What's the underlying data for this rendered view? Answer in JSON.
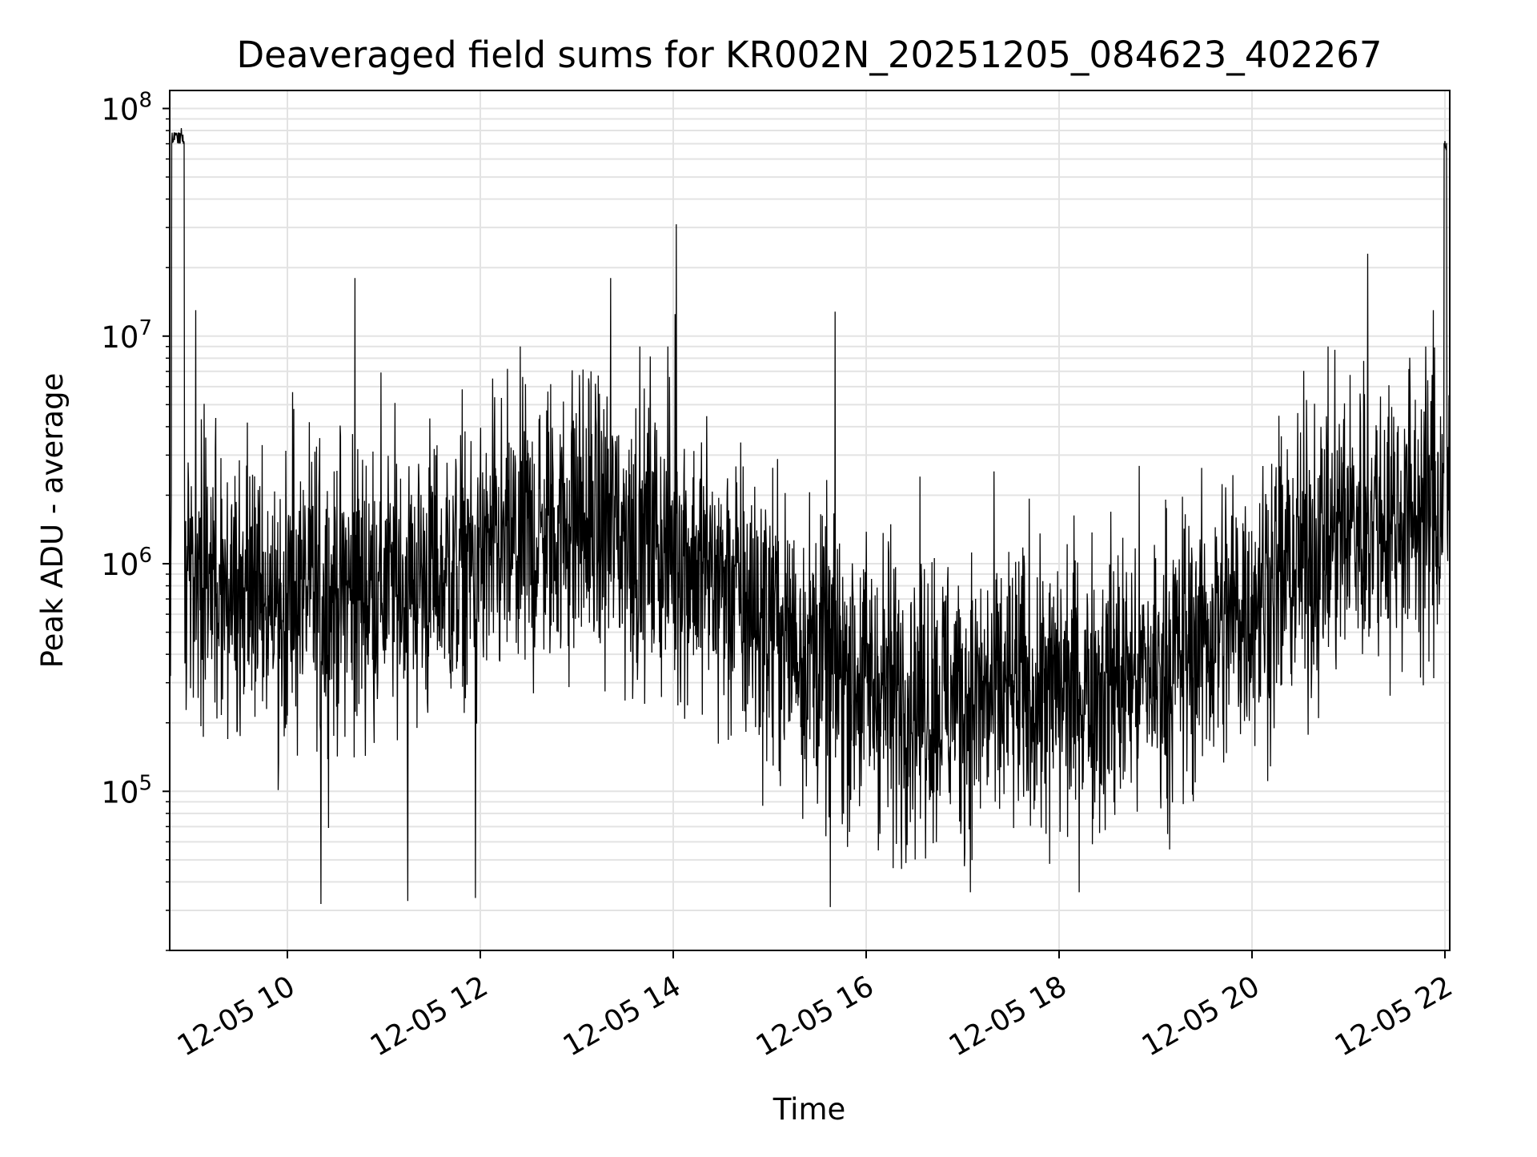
{
  "chart_data": {
    "type": "line",
    "title": "Deaveraged field sums for KR002N_20251205_084623_402267",
    "xlabel": "Time",
    "ylabel": "Peak ADU - average",
    "yscale": "log",
    "ylim": [
      20000,
      120000000
    ],
    "xlim_hours": [
      8.78,
      22.05
    ],
    "grid": true,
    "line_color": "#000000",
    "grid_color": "#e3e3e3",
    "x_ticks": [
      {
        "value": 10,
        "label": "12-05 10"
      },
      {
        "value": 12,
        "label": "12-05 12"
      },
      {
        "value": 14,
        "label": "12-05 14"
      },
      {
        "value": 16,
        "label": "12-05 16"
      },
      {
        "value": 18,
        "label": "12-05 18"
      },
      {
        "value": 20,
        "label": "12-05 20"
      },
      {
        "value": 22,
        "label": "12-05 22"
      }
    ],
    "y_ticks": [
      {
        "value": 100000,
        "base": "10",
        "exp": "5"
      },
      {
        "value": 1000000,
        "base": "10",
        "exp": "6"
      },
      {
        "value": 10000000,
        "base": "10",
        "exp": "7"
      },
      {
        "value": 100000000,
        "base": "10",
        "exp": "8"
      }
    ],
    "series": [
      {
        "name": "Peak ADU - average",
        "trend": {
          "hours": [
            8.78,
            9.0,
            10.0,
            11.0,
            12.0,
            13.0,
            14.0,
            15.0,
            16.0,
            17.0,
            18.0,
            19.0,
            20.0,
            21.0,
            22.05
          ],
          "median": [
            1000000,
            750000,
            700000,
            800000,
            1000000,
            1600000,
            1200000,
            550000,
            300000,
            250000,
            280000,
            330000,
            700000,
            1500000,
            1800000
          ]
        },
        "spikes": [
          {
            "hour": 8.82,
            "value": 75000000
          },
          {
            "hour": 8.9,
            "value": 82000000
          },
          {
            "hour": 9.05,
            "value": 13000000
          },
          {
            "hour": 10.7,
            "value": 18000000
          },
          {
            "hour": 13.35,
            "value": 18000000
          },
          {
            "hour": 14.03,
            "value": 31000000
          },
          {
            "hour": 14.02,
            "value": 12500000
          },
          {
            "hour": 15.68,
            "value": 12800000
          },
          {
            "hour": 21.2,
            "value": 23000000
          },
          {
            "hour": 21.88,
            "value": 13000000
          },
          {
            "hour": 22.0,
            "value": 72000000
          },
          {
            "hour": 10.35,
            "value": 32000
          },
          {
            "hour": 11.25,
            "value": 33000
          },
          {
            "hour": 11.95,
            "value": 34000
          },
          {
            "hour": 15.63,
            "value": 31000
          },
          {
            "hour": 16.28,
            "value": 46000
          },
          {
            "hour": 17.9,
            "value": 48000
          }
        ]
      }
    ]
  }
}
